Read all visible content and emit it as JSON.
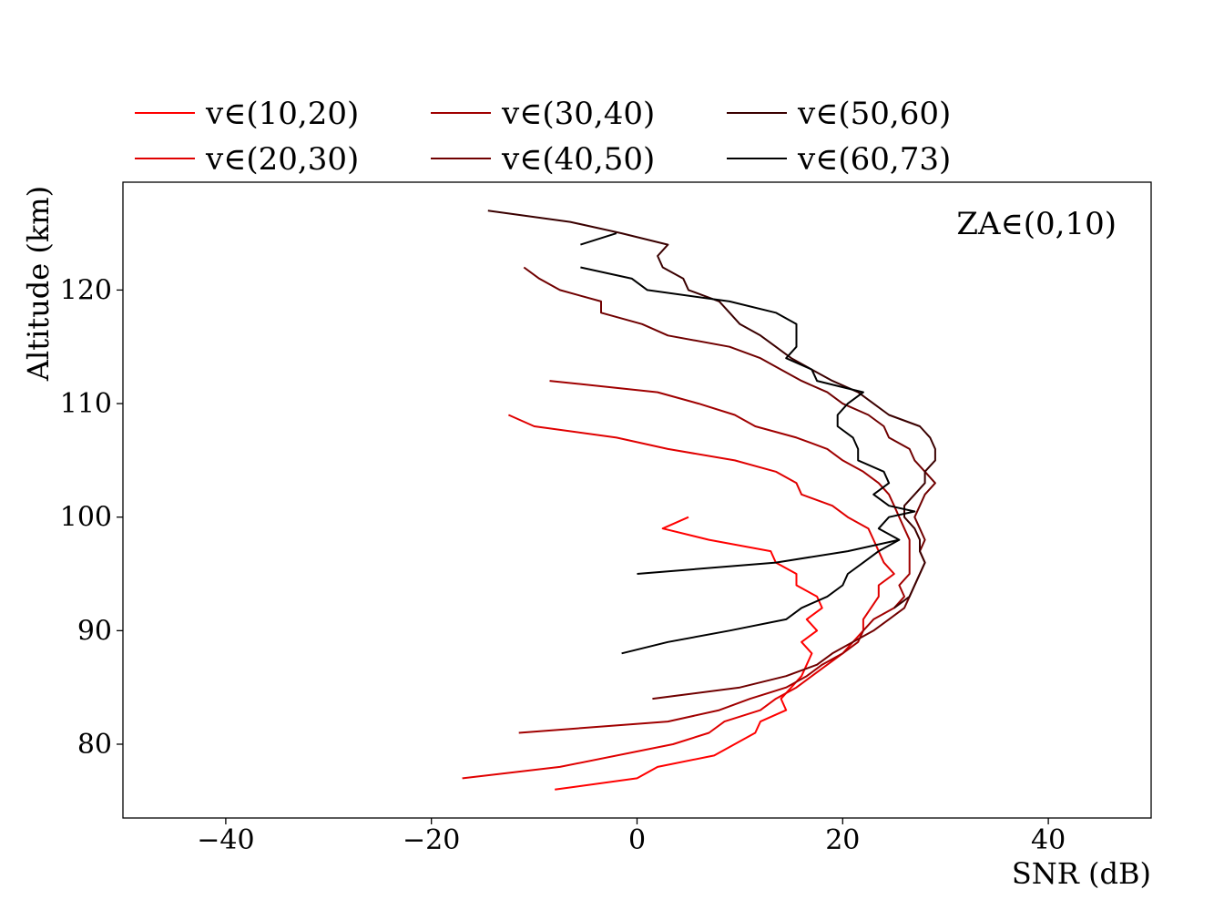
{
  "chart_data": {
    "type": "line",
    "xlabel": "SNR (dB)",
    "ylabel": "Altitude (km)",
    "xlim": [
      -50,
      50
    ],
    "ylim": [
      73.5,
      129.5
    ],
    "xticks": [
      -40,
      -20,
      0,
      20,
      40
    ],
    "xtick_labels": [
      "−40",
      "−20",
      "0",
      "20",
      "40"
    ],
    "yticks": [
      80,
      90,
      100,
      110,
      120
    ],
    "ytick_labels": [
      "80",
      "90",
      "100",
      "110",
      "120"
    ],
    "annotation": "ZA∈(0,10)",
    "legend_placement": "above-plot",
    "grid": false,
    "series": [
      {
        "name": "v∈(10,20)",
        "color": "#ff0000",
        "points": [
          [
            -8,
            76
          ],
          [
            0,
            77
          ],
          [
            2,
            78
          ],
          [
            7.5,
            79
          ],
          [
            11.5,
            81
          ],
          [
            12,
            82
          ],
          [
            14.5,
            83
          ],
          [
            14,
            84
          ],
          [
            16,
            86
          ],
          [
            16.5,
            87
          ],
          [
            17,
            88
          ],
          [
            16,
            89
          ],
          [
            17.5,
            90
          ],
          [
            16.5,
            91
          ],
          [
            18,
            92
          ],
          [
            17.5,
            93
          ],
          [
            15.5,
            94
          ],
          [
            15.5,
            95
          ],
          [
            13.5,
            96
          ],
          [
            13,
            97
          ],
          [
            7,
            98
          ],
          [
            2.5,
            99
          ],
          [
            5,
            100
          ]
        ]
      },
      {
        "name": "v∈(20,30)",
        "color": "#e00000",
        "points": [
          [
            -17,
            77
          ],
          [
            -7.5,
            78
          ],
          [
            3.5,
            80
          ],
          [
            7,
            81
          ],
          [
            8.5,
            82
          ],
          [
            12,
            83
          ],
          [
            13.5,
            84
          ],
          [
            15.5,
            85
          ],
          [
            17,
            86
          ],
          [
            18.5,
            87
          ],
          [
            20,
            88
          ],
          [
            21,
            89
          ],
          [
            22,
            90
          ],
          [
            22,
            91
          ],
          [
            23.5,
            93
          ],
          [
            23.5,
            94
          ],
          [
            25,
            95
          ],
          [
            24,
            96
          ],
          [
            23.5,
            97
          ],
          [
            23,
            98
          ],
          [
            22.5,
            99
          ],
          [
            20.5,
            100
          ],
          [
            19,
            101
          ],
          [
            16,
            102
          ],
          [
            15.5,
            103
          ],
          [
            13.5,
            104
          ],
          [
            9.5,
            105
          ],
          [
            3,
            106
          ],
          [
            -2,
            107
          ],
          [
            -10,
            108
          ],
          [
            -12.5,
            109
          ]
        ]
      },
      {
        "name": "v∈(30,40)",
        "color": "#a00000",
        "points": [
          [
            -11.5,
            81
          ],
          [
            3,
            82
          ],
          [
            8,
            83
          ],
          [
            11,
            84
          ],
          [
            14.5,
            85
          ],
          [
            16.5,
            86
          ],
          [
            18,
            87
          ],
          [
            20,
            88
          ],
          [
            21.5,
            89
          ],
          [
            22,
            90
          ],
          [
            23,
            91
          ],
          [
            25,
            92
          ],
          [
            26,
            93
          ],
          [
            25.5,
            94
          ],
          [
            26.5,
            95
          ],
          [
            26.5,
            96
          ],
          [
            26.5,
            98
          ],
          [
            26,
            99
          ],
          [
            25.5,
            100
          ],
          [
            25,
            101
          ],
          [
            24.5,
            102
          ],
          [
            23.5,
            103
          ],
          [
            22,
            104
          ],
          [
            20,
            105
          ],
          [
            18.5,
            106
          ],
          [
            15.5,
            107
          ],
          [
            11.5,
            108
          ],
          [
            9.5,
            109
          ],
          [
            6,
            110
          ],
          [
            2,
            111
          ],
          [
            -8.5,
            112
          ]
        ]
      },
      {
        "name": "v∈(40,50)",
        "color": "#700000",
        "points": [
          [
            1.5,
            84
          ],
          [
            10,
            85
          ],
          [
            14.5,
            86
          ],
          [
            17.5,
            87
          ],
          [
            19,
            88
          ],
          [
            21,
            89
          ],
          [
            23,
            90
          ],
          [
            24.5,
            91
          ],
          [
            26,
            92
          ],
          [
            26.5,
            93
          ],
          [
            27,
            94
          ],
          [
            27.5,
            95
          ],
          [
            28,
            96
          ],
          [
            27.5,
            97
          ],
          [
            28,
            98
          ],
          [
            27.5,
            99
          ],
          [
            27,
            100
          ],
          [
            27.5,
            101
          ],
          [
            28,
            102
          ],
          [
            29,
            103
          ],
          [
            28,
            104
          ],
          [
            27,
            105
          ],
          [
            26.5,
            106
          ],
          [
            24.5,
            107
          ],
          [
            24,
            108
          ],
          [
            22.5,
            109
          ],
          [
            20,
            110
          ],
          [
            18.5,
            111
          ],
          [
            16,
            112
          ],
          [
            14,
            113
          ],
          [
            12,
            114
          ],
          [
            9,
            115
          ],
          [
            3,
            116
          ],
          [
            0.5,
            117
          ],
          [
            -3.5,
            118
          ],
          [
            -3.5,
            119
          ],
          [
            -7.5,
            120
          ],
          [
            -9.5,
            121
          ],
          [
            -11,
            122
          ]
        ]
      },
      {
        "name": "v∈(50,60)",
        "color": "#3a0000",
        "points": [
          [
            25,
            92
          ],
          [
            26.5,
            93
          ],
          [
            27,
            94
          ],
          [
            27.5,
            95
          ],
          [
            28,
            96
          ],
          [
            27.5,
            97
          ],
          [
            27.5,
            98
          ],
          [
            27,
            99
          ],
          [
            26,
            100
          ],
          [
            26,
            101
          ],
          [
            27,
            102
          ],
          [
            28,
            103
          ],
          [
            28,
            104
          ],
          [
            29,
            105
          ],
          [
            29,
            106
          ],
          [
            28.5,
            107
          ],
          [
            27.5,
            108
          ],
          [
            24.5,
            109
          ],
          [
            23,
            110
          ],
          [
            21.5,
            111
          ],
          [
            19,
            112
          ],
          [
            17,
            113
          ],
          [
            15,
            114
          ],
          [
            13.5,
            115
          ],
          [
            12,
            116
          ],
          [
            10,
            117
          ],
          [
            9,
            118
          ],
          [
            8,
            119
          ],
          [
            5,
            120
          ],
          [
            4.5,
            121
          ],
          [
            2.5,
            122
          ],
          [
            2,
            123
          ],
          [
            3,
            124
          ],
          [
            -1.5,
            125
          ],
          [
            -6.5,
            126
          ],
          [
            -14.5,
            127
          ]
        ]
      },
      {
        "name": "v∈(60,73)",
        "color": "#000000",
        "points": [
          [
            -1.5,
            88
          ],
          [
            3,
            89
          ],
          [
            9,
            90
          ],
          [
            14.5,
            91
          ],
          [
            16,
            92
          ],
          [
            18.5,
            93
          ],
          [
            20,
            94
          ],
          [
            20.5,
            95
          ],
          [
            22,
            96
          ],
          [
            23.5,
            97
          ],
          [
            25.5,
            98
          ],
          [
            23.5,
            99
          ],
          [
            24.5,
            100
          ],
          [
            27,
            100.5
          ],
          [
            24.5,
            101
          ],
          [
            23,
            102
          ],
          [
            24.5,
            103
          ],
          [
            24,
            104
          ],
          [
            21.5,
            105
          ],
          [
            21.5,
            106
          ],
          [
            21,
            107
          ],
          [
            19.5,
            108
          ],
          [
            19.5,
            109
          ],
          [
            20.5,
            110
          ],
          [
            22,
            111
          ],
          [
            17.5,
            112
          ],
          [
            17,
            113
          ],
          [
            14.5,
            114
          ],
          [
            15.5,
            115
          ],
          [
            15.5,
            116
          ],
          [
            15.5,
            117
          ],
          [
            13.5,
            118
          ],
          [
            9,
            119
          ],
          [
            1,
            120
          ],
          [
            -0.5,
            121
          ],
          [
            -5.5,
            122
          ]
        ]
      },
      {
        "name": "",
        "color": "#000000",
        "points": [
          [
            0,
            95
          ],
          [
            13.5,
            96
          ],
          [
            20.5,
            97
          ],
          [
            25.5,
            98
          ]
        ]
      },
      {
        "name": "",
        "color": "#000000",
        "points": [
          [
            -5.5,
            124
          ],
          [
            -2,
            125
          ]
        ]
      }
    ]
  }
}
